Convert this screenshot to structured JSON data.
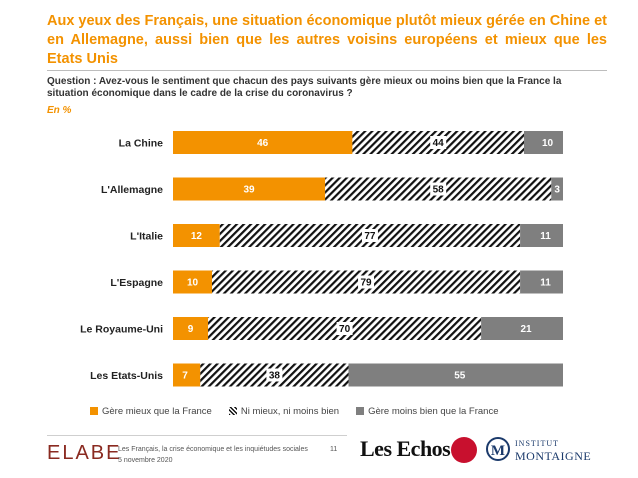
{
  "title": "Aux yeux des Français, une situation économique plutôt mieux gérée en Chine et en Allemagne, aussi bien que les autres voisins européens et mieux que les Etats Unis",
  "question": "Question : Avez-vous le sentiment que chacun des pays suivants gère mieux ou moins bien que la France la situation économique dans le cadre de la crise du coronavirus ?",
  "unit": "En %",
  "colors": {
    "orange": "#f39200",
    "grey": "#7f7f7f",
    "hatch": "#111111"
  },
  "chart_data": {
    "type": "bar",
    "orientation": "horizontal",
    "stacked": true,
    "categories": [
      "La Chine",
      "L'Allemagne",
      "L'Italie",
      "L'Espagne",
      "Le Royaume-Uni",
      "Les Etats-Unis"
    ],
    "series": [
      {
        "name": "Gère mieux que la France",
        "values": [
          46,
          39,
          12,
          10,
          9,
          7
        ],
        "fill": "orange"
      },
      {
        "name": "Ni mieux, ni moins bien",
        "values": [
          44,
          58,
          77,
          79,
          70,
          38
        ],
        "fill": "hatch"
      },
      {
        "name": "Gère moins bien que la France",
        "values": [
          10,
          3,
          11,
          11,
          21,
          55
        ],
        "fill": "grey"
      }
    ],
    "xlim": [
      0,
      100
    ],
    "grid": false,
    "legend": "bottom"
  },
  "footer": {
    "brand": "ELABE",
    "line1": "Les Français, la crise économique et les inquiétudes sociales",
    "line2": "5 novembre 2020",
    "page": "11",
    "partner1": "Les Echos",
    "partner2_letter": "M",
    "partner2_line1": "INSTITUT",
    "partner2_line2": "MONTAIGNE"
  }
}
